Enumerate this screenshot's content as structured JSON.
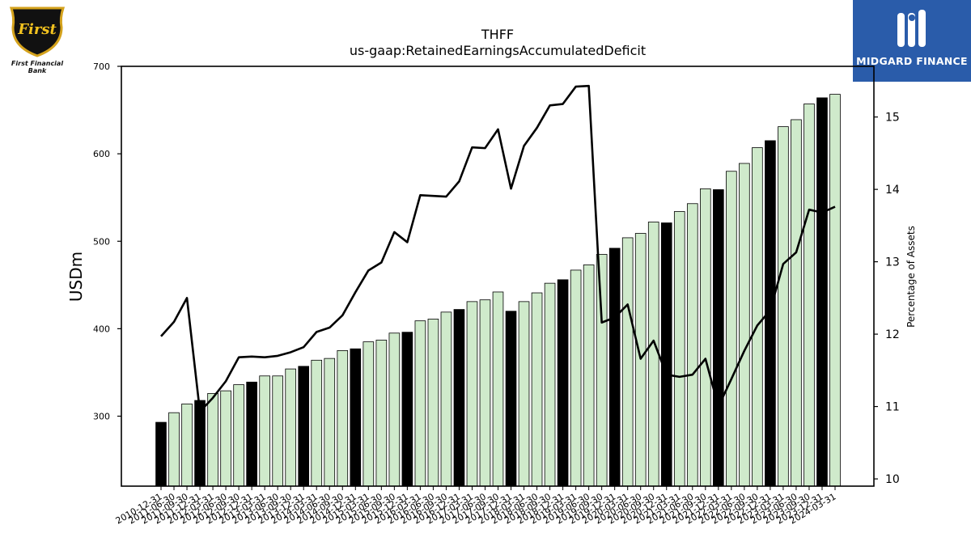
{
  "header": {
    "left_logo_text": "First",
    "left_logo_caption": "First Financial Bank",
    "right_logo_caption": "MIDGARD FINANCE"
  },
  "colors": {
    "bar_highlight": "#000000",
    "bar_normal": "#cfeacb",
    "bar_edge": "#000000",
    "line": "#000000",
    "brand_blue": "#2a5caa"
  },
  "chart_data": {
    "type": "bar",
    "title": "THFF",
    "subtitle": "us-gaap:RetainedEarningsAccumulatedDeficit",
    "ylabel": "USDm",
    "y2label": "Percentage of Assets",
    "ylim": [
      220,
      700
    ],
    "y2lim": [
      9.9,
      15.7
    ],
    "yticks": [
      300,
      400,
      500,
      600,
      700
    ],
    "y2ticks": [
      10,
      11,
      12,
      13,
      14,
      15
    ],
    "x_tick_labels": [
      "2010-12-31",
      "2011-06-30",
      "2011-09-30",
      "2011-12-31",
      "2012-03-31",
      "2012-06-30",
      "2012-09-30",
      "2012-12-31",
      "2013-03-31",
      "2013-06-30",
      "2013-09-30",
      "2013-12-31",
      "2014-03-31",
      "2014-06-30",
      "2014-09-30",
      "2014-12-31",
      "2015-03-31",
      "2015-06-30",
      "2015-09-30",
      "2015-12-31",
      "2016-03-31",
      "2016-06-30",
      "2016-09-30",
      "2016-12-31",
      "2017-03-31",
      "2017-06-30",
      "2017-09-30",
      "2017-12-31",
      "2018-03-31",
      "2018-06-30",
      "2018-09-30",
      "2018-12-31",
      "2019-03-31",
      "2019-06-30",
      "2019-09-30",
      "2019-12-31",
      "2020-03-31",
      "2020-06-30",
      "2020-09-30",
      "2020-12-31",
      "2021-03-31",
      "2021-06-30",
      "2021-09-30",
      "2021-12-31",
      "2022-03-31",
      "2022-06-30",
      "2022-09-30",
      "2022-12-31",
      "2023-03-31",
      "2023-06-30",
      "2023-09-30",
      "2023-12-31",
      "2024-03-31"
    ],
    "series": [
      {
        "type": "bar",
        "values": [
          293,
          304,
          314,
          318,
          326,
          329,
          336,
          339,
          346,
          346,
          354,
          357,
          364,
          366,
          375,
          377,
          385,
          387,
          395,
          396,
          409,
          411,
          419,
          422,
          431,
          433,
          442,
          420,
          431,
          441,
          452,
          456,
          467,
          473,
          485,
          492,
          504,
          509,
          522,
          521,
          534,
          543,
          560,
          559,
          580,
          589,
          607,
          615,
          631,
          639,
          657,
          664,
          668
        ],
        "highlight": [
          true,
          false,
          false,
          true,
          false,
          false,
          false,
          true,
          false,
          false,
          false,
          true,
          false,
          false,
          false,
          true,
          false,
          false,
          false,
          true,
          false,
          false,
          false,
          true,
          false,
          false,
          false,
          true,
          false,
          false,
          false,
          true,
          false,
          false,
          false,
          true,
          false,
          false,
          false,
          true,
          false,
          false,
          false,
          true,
          false,
          false,
          false,
          true,
          false,
          false,
          false,
          true,
          false
        ]
      },
      {
        "type": "line",
        "axis": "y2",
        "values": [
          11.97,
          12.17,
          12.5,
          10.93,
          11.12,
          11.35,
          11.68,
          11.69,
          11.68,
          11.7,
          11.75,
          11.82,
          12.03,
          12.09,
          12.26,
          12.58,
          12.88,
          12.99,
          13.41,
          13.27,
          13.92,
          13.91,
          13.9,
          14.11,
          14.58,
          14.57,
          14.83,
          14.01,
          14.6,
          14.85,
          15.16,
          15.18,
          15.42,
          15.43,
          12.16,
          12.23,
          12.41,
          11.66,
          11.91,
          11.44,
          11.41,
          11.44,
          11.66,
          11.0,
          11.38,
          11.77,
          12.12,
          12.33,
          12.97,
          13.13,
          13.72,
          13.68,
          13.76
        ]
      }
    ],
    "grid": false,
    "legend": "none"
  }
}
